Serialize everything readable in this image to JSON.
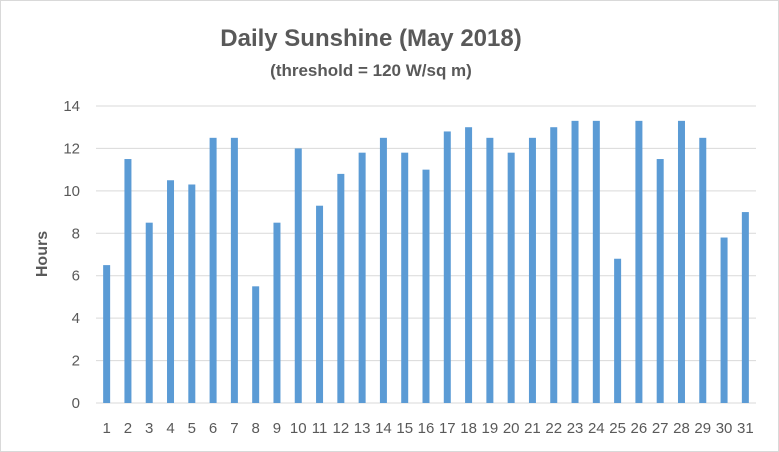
{
  "chart_data": {
    "type": "bar",
    "title": "Daily Sunshine (May 2018)",
    "subtitle": "(threshold = 120 W/sq m)",
    "xlabel": "",
    "ylabel": "Hours",
    "ylim": [
      0,
      14
    ],
    "yticks": [
      0,
      2,
      4,
      6,
      8,
      10,
      12,
      14
    ],
    "grid": true,
    "legend": "none",
    "categories": [
      "1",
      "2",
      "3",
      "4",
      "5",
      "6",
      "7",
      "8",
      "9",
      "10",
      "11",
      "12",
      "13",
      "14",
      "15",
      "16",
      "17",
      "18",
      "19",
      "20",
      "21",
      "22",
      "23",
      "24",
      "25",
      "26",
      "27",
      "28",
      "29",
      "30",
      "31"
    ],
    "values": [
      6.5,
      11.5,
      8.5,
      10.5,
      10.3,
      12.5,
      12.5,
      5.5,
      8.5,
      12.0,
      9.3,
      10.8,
      11.8,
      12.5,
      11.8,
      11.0,
      12.8,
      13.0,
      12.5,
      11.8,
      12.5,
      13.0,
      13.3,
      13.3,
      6.8,
      13.3,
      11.5,
      13.3,
      12.5,
      7.8,
      9.0
    ],
    "bar_color": "#5b9bd5",
    "grid_color": "#d9d9d9",
    "text_color": "#595959"
  }
}
